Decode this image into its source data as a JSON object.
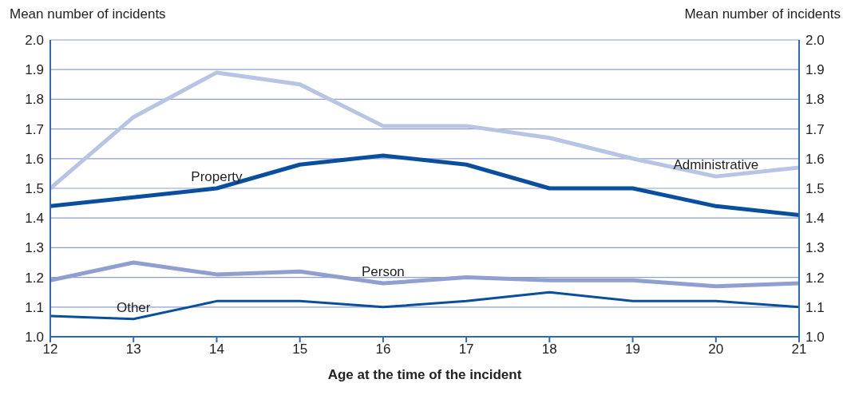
{
  "chart_data": {
    "type": "line",
    "xlabel": "Age at the time of the incident",
    "ylabel": "Mean number of incidents",
    "y2label": "Mean number of incidents",
    "x": [
      12,
      13,
      14,
      15,
      16,
      17,
      18,
      19,
      20,
      21
    ],
    "series": [
      {
        "name": "Administrative",
        "color": "#b8c4e4",
        "values": [
          1.5,
          1.74,
          1.89,
          1.85,
          1.71,
          1.71,
          1.67,
          1.6,
          1.54,
          1.57
        ]
      },
      {
        "name": "Property",
        "color": "#0a4f9e",
        "values": [
          1.44,
          1.47,
          1.5,
          1.58,
          1.61,
          1.58,
          1.5,
          1.5,
          1.44,
          1.41
        ]
      },
      {
        "name": "Person",
        "color": "#8e9fd0",
        "values": [
          1.19,
          1.25,
          1.21,
          1.22,
          1.18,
          1.2,
          1.19,
          1.19,
          1.17,
          1.18
        ]
      },
      {
        "name": "Other",
        "color": "#0a4f9e",
        "values": [
          1.07,
          1.06,
          1.12,
          1.12,
          1.1,
          1.12,
          1.15,
          1.12,
          1.12,
          1.1
        ]
      }
    ],
    "xlim": [
      12,
      21
    ],
    "xticks": [
      12,
      13,
      14,
      15,
      16,
      17,
      18,
      19,
      20,
      21
    ],
    "ylim": [
      1,
      2
    ],
    "yticks": [
      {
        "value": 1,
        "label": "1.0"
      },
      {
        "value": 1.1,
        "label": "1.1"
      },
      {
        "value": 1.2,
        "label": "1.2"
      },
      {
        "value": 1.3,
        "label": "1.3"
      },
      {
        "value": 1.4,
        "label": "1.4"
      },
      {
        "value": 1.5,
        "label": "1.5"
      },
      {
        "value": 1.6,
        "label": "1.6"
      },
      {
        "value": 1.7,
        "label": "1.7"
      },
      {
        "value": 1.8,
        "label": "1.8"
      },
      {
        "value": 1.9,
        "label": "1.9"
      },
      {
        "value": 2,
        "label": "2.0"
      }
    ],
    "y2lim": [
      1,
      2
    ],
    "y2ticks": [
      {
        "value": 1,
        "label": "1.0"
      },
      {
        "value": 1.1,
        "label": "1.1"
      },
      {
        "value": 1.2,
        "label": "1.2"
      },
      {
        "value": 1.3,
        "label": "1.3"
      },
      {
        "value": 1.4,
        "label": "1.4"
      },
      {
        "value": 1.5,
        "label": "1.5"
      },
      {
        "value": 1.6,
        "label": "1.6"
      },
      {
        "value": 1.7,
        "label": "1.7"
      },
      {
        "value": 1.8,
        "label": "1.8"
      },
      {
        "value": 1.9,
        "label": "1.9"
      },
      {
        "value": 2,
        "label": "2.0"
      }
    ],
    "grid": "y",
    "marker": "none",
    "line_style": "solid"
  }
}
